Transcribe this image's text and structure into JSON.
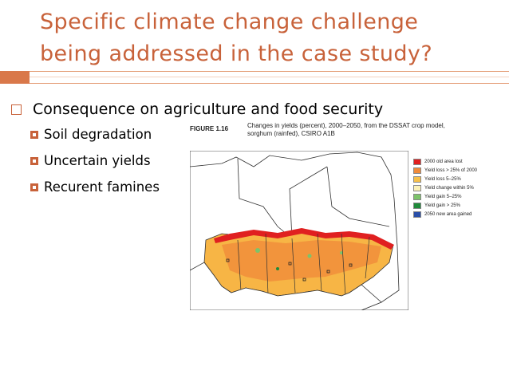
{
  "slide": {
    "title_line1": "Specific climate change challenge",
    "title_line2": "being addressed in the case study?",
    "main_bullet": "Consequence on agriculture and food security",
    "sub_bullets": [
      "Soil degradation",
      "Uncertain yields",
      "Recurent famines"
    ]
  },
  "figure": {
    "number": "FIGURE 1.16",
    "caption_line1": "Changes in yields (percent), 2000–2050, from the DSSAT crop model,",
    "caption_line2": "sorghum (rainfed), CSIRO A1B",
    "legend": [
      {
        "label": "2000 old area lost",
        "color": "#e02020"
      },
      {
        "label": "Yield loss > 25% of 2000",
        "color": "#f08a3a"
      },
      {
        "label": "Yield loss 5–25%",
        "color": "#f7c04a"
      },
      {
        "label": "Yield change within 5%",
        "color": "#fbf1b8"
      },
      {
        "label": "Yield gain 5–25%",
        "color": "#7cc36b"
      },
      {
        "label": "Yield gain > 25%",
        "color": "#1f8a3a"
      },
      {
        "label": "2050 new area gained",
        "color": "#2a4fa8"
      }
    ]
  },
  "colors": {
    "accent": "#c8623a",
    "bar": "#d9784a"
  }
}
